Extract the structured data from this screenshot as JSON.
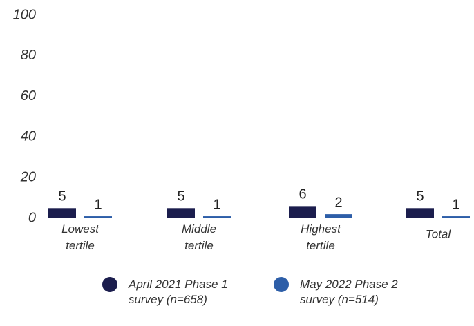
{
  "chart_data": {
    "type": "bar",
    "categories": [
      "Lowest tertile",
      "Middle tertile",
      "Highest tertile",
      "Total"
    ],
    "series": [
      {
        "name": "April 2021 Phase 1 survey (n=658)",
        "color": "#1b1d4d",
        "values": [
          5,
          5,
          6,
          5
        ]
      },
      {
        "name": "May 2022 Phase 2 survey (n=514)",
        "color": "#2d5ea8",
        "values": [
          1,
          1,
          2,
          1
        ]
      }
    ],
    "ylim": [
      0,
      100
    ],
    "yticks": [
      0,
      20,
      40,
      60,
      80,
      100
    ],
    "grid": false
  }
}
